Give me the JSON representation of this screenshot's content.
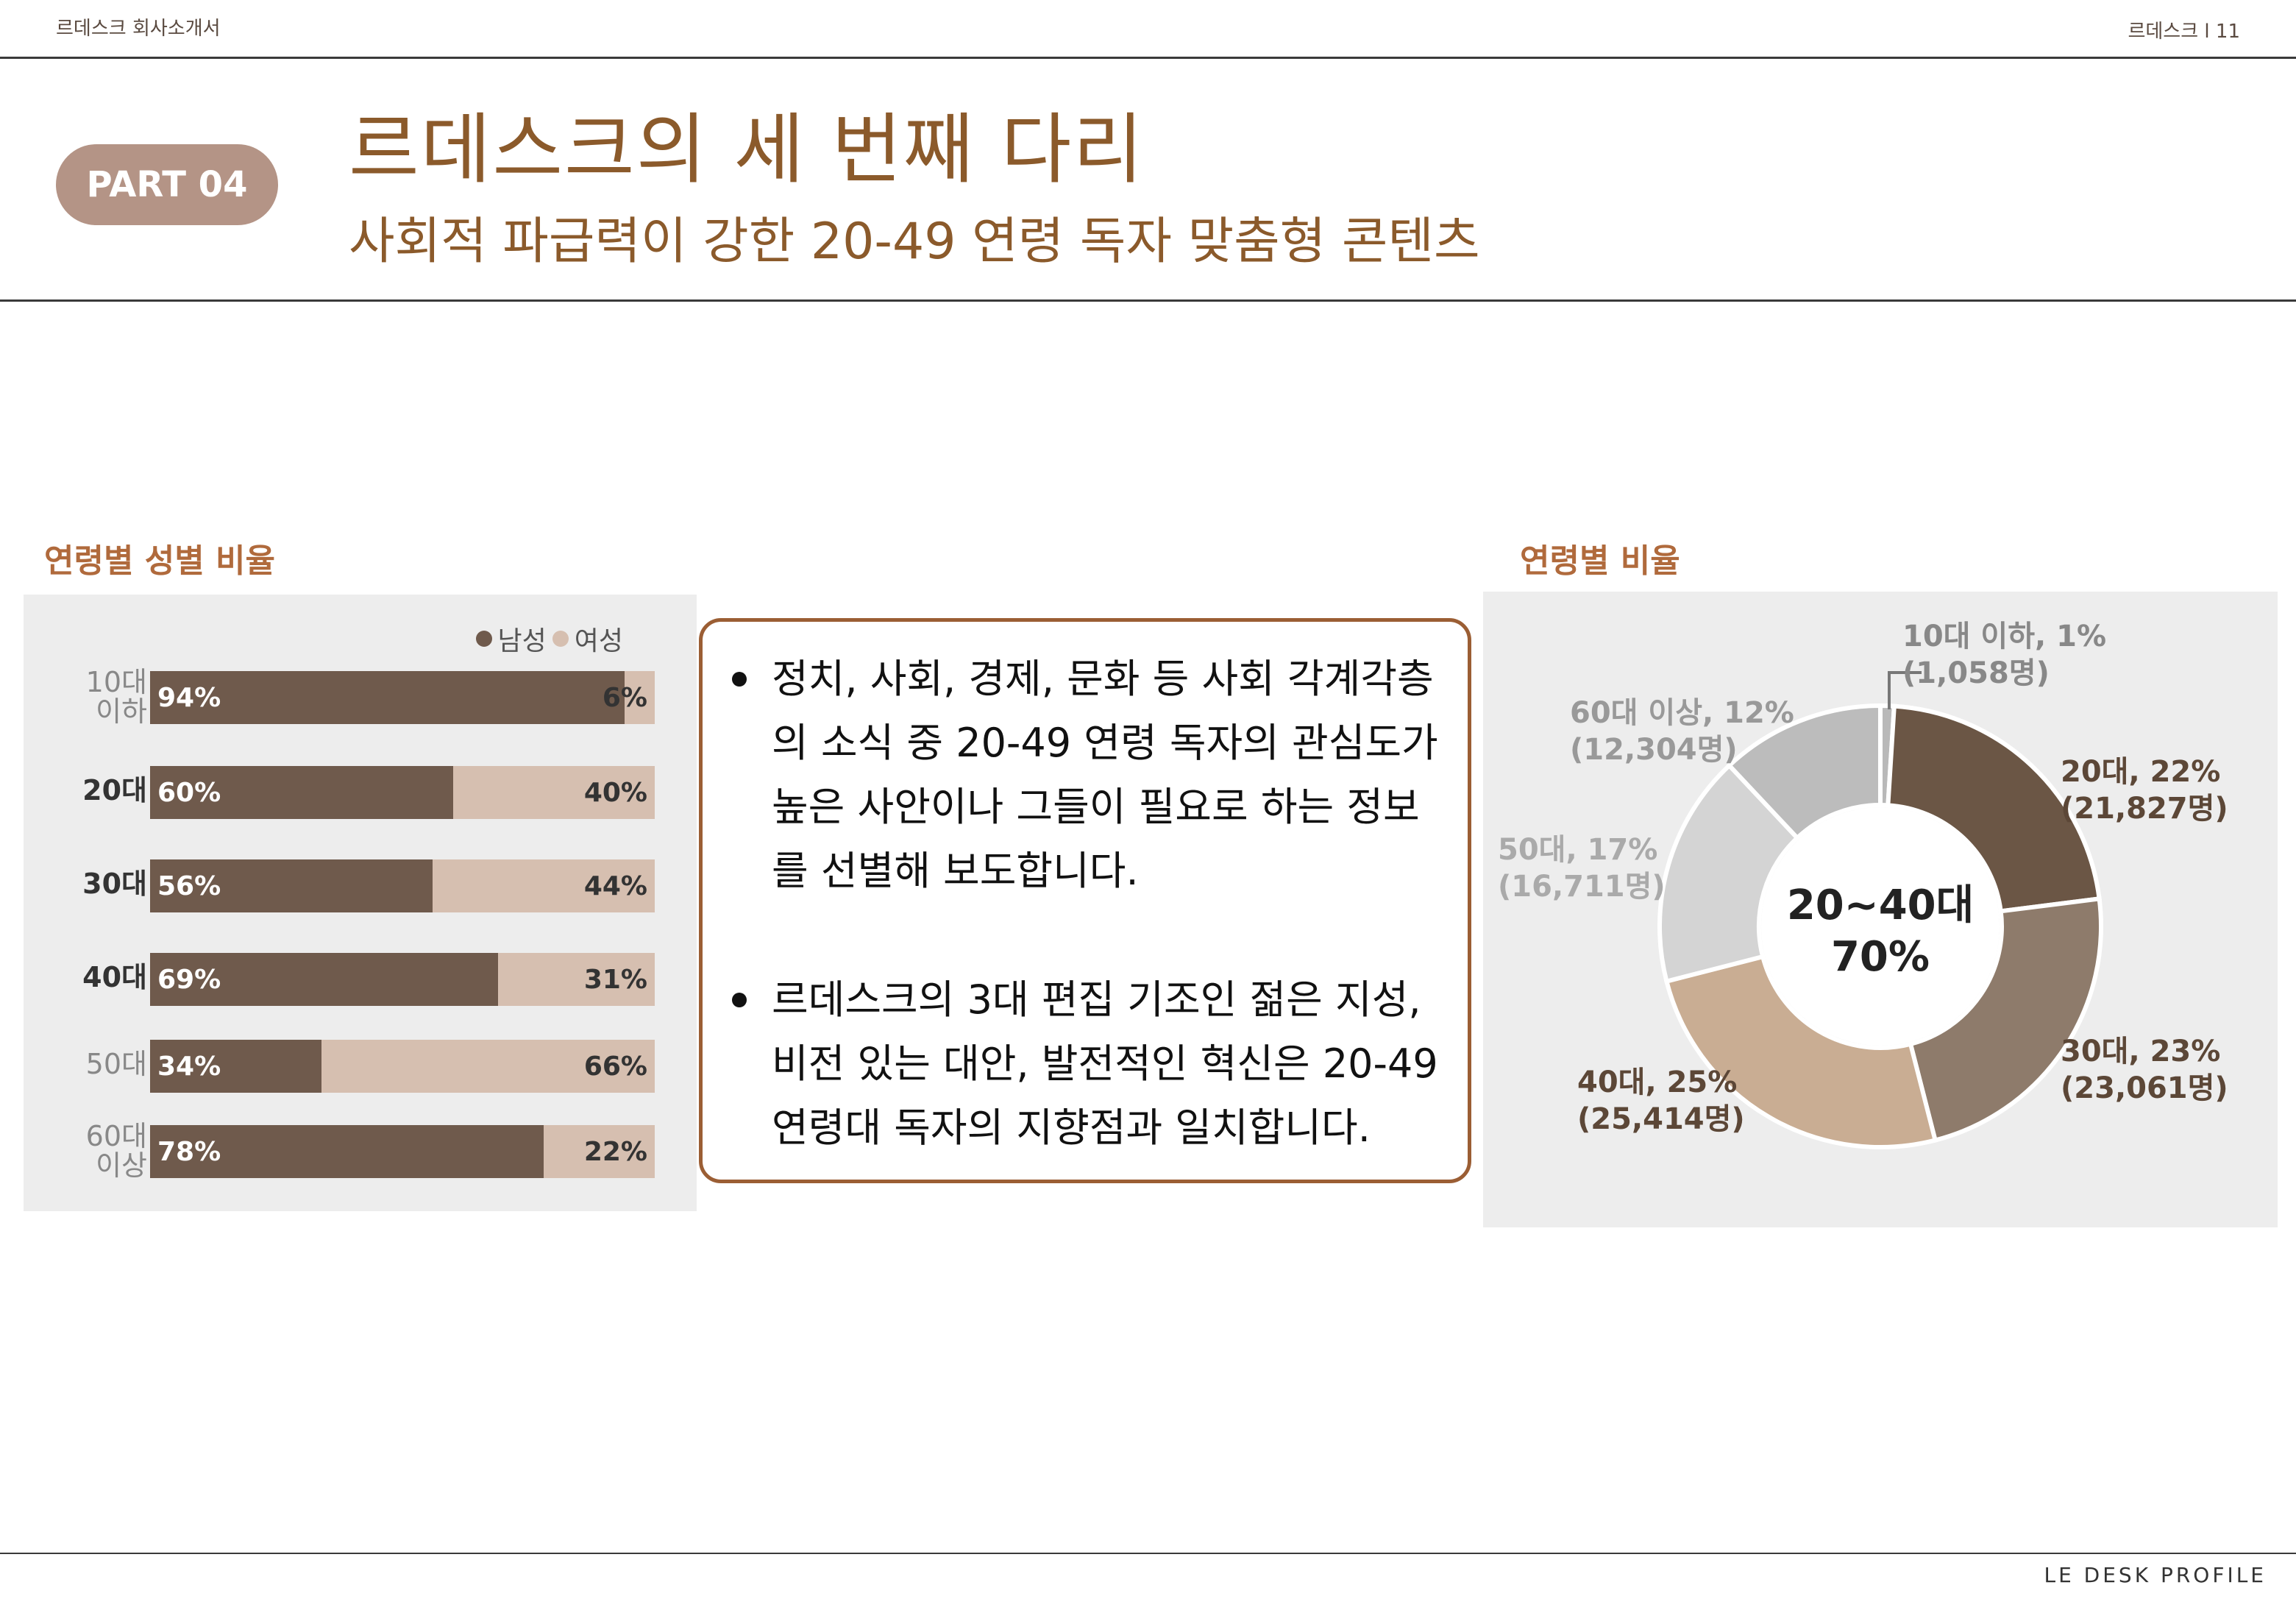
{
  "header": {
    "company_doc": "르데스크 회사소개서",
    "page_ref": "르데스크 l 11"
  },
  "part_badge": "PART 04",
  "title": "르데스크의 세 번째 다리",
  "subtitle": "사회적 파급력이 강한 20-49 연령 독자 맞춤형 콘텐츠",
  "left_section_label": "연령별 성별 비율",
  "right_section_label": "연령별 비율",
  "text_box": {
    "bullets": [
      [
        "정치, 사회, 경제, 문화 등 사회 각계각층",
        "의 소식 중 20-49 연령 독자의 관심도가",
        "높은 사안이나 그들이 필요로 하는 정보",
        "를 선별해 보도합니다."
      ],
      [
        "르데스크의 3대 편집 기조인 젊은 지성,",
        "비전 있는 대안, 발전적인 혁신은 20-49",
        "연령대 독자의 지향점과 일치합니다."
      ]
    ]
  },
  "colors": {
    "male": "#6f5a4c",
    "female": "#d6bfb0",
    "title": "#8b5a2b",
    "badge": "#b49486"
  },
  "chart_data": [
    {
      "type": "bar",
      "orientation": "horizontal-stacked-100",
      "legend_position": "top-right",
      "categories": [
        [
          "10대",
          "이하"
        ],
        [
          "20대"
        ],
        [
          "30대"
        ],
        [
          "40대"
        ],
        [
          "50대"
        ],
        [
          "60대",
          "이상"
        ]
      ],
      "category_emphasis": [
        false,
        true,
        true,
        true,
        false,
        false
      ],
      "series": [
        {
          "name": "남성",
          "values": [
            94,
            60,
            56,
            69,
            34,
            78
          ],
          "labels": [
            "94%",
            "60%",
            "56%",
            "69%",
            "34%",
            "78%"
          ]
        },
        {
          "name": "여성",
          "values": [
            6,
            40,
            44,
            31,
            66,
            22
          ],
          "labels": [
            "6%",
            "40%",
            "44%",
            "31%",
            "66%",
            "22%"
          ]
        }
      ]
    },
    {
      "type": "pie",
      "style": "donut",
      "center_label": [
        "20~40대",
        "70%"
      ],
      "slices": [
        {
          "label": [
            "10대 이하, 1%",
            "(1,058명)"
          ],
          "value": 1,
          "count": 1058,
          "color": "#b9b9b9"
        },
        {
          "label": [
            "20대, 22%",
            "(21,827명)"
          ],
          "value": 22,
          "count": 21827,
          "color": "#6b5645"
        },
        {
          "label": [
            "30대, 23%",
            "(23,061명)"
          ],
          "value": 23,
          "count": 23061,
          "color": "#8e7b6b"
        },
        {
          "label": [
            "40대, 25%",
            "(25,414명)"
          ],
          "value": 25,
          "count": 25414,
          "color": "#c9ad93"
        },
        {
          "label": [
            "50대, 17%",
            "(16,711명)"
          ],
          "value": 17,
          "count": 16711,
          "color": "#d4d4d4"
        },
        {
          "label": [
            "60대 이상, 12%",
            "(12,304명)"
          ],
          "value": 12,
          "count": 12304,
          "color": "#bcbcbc"
        }
      ]
    }
  ],
  "footer": "LE DESK PROFILE"
}
